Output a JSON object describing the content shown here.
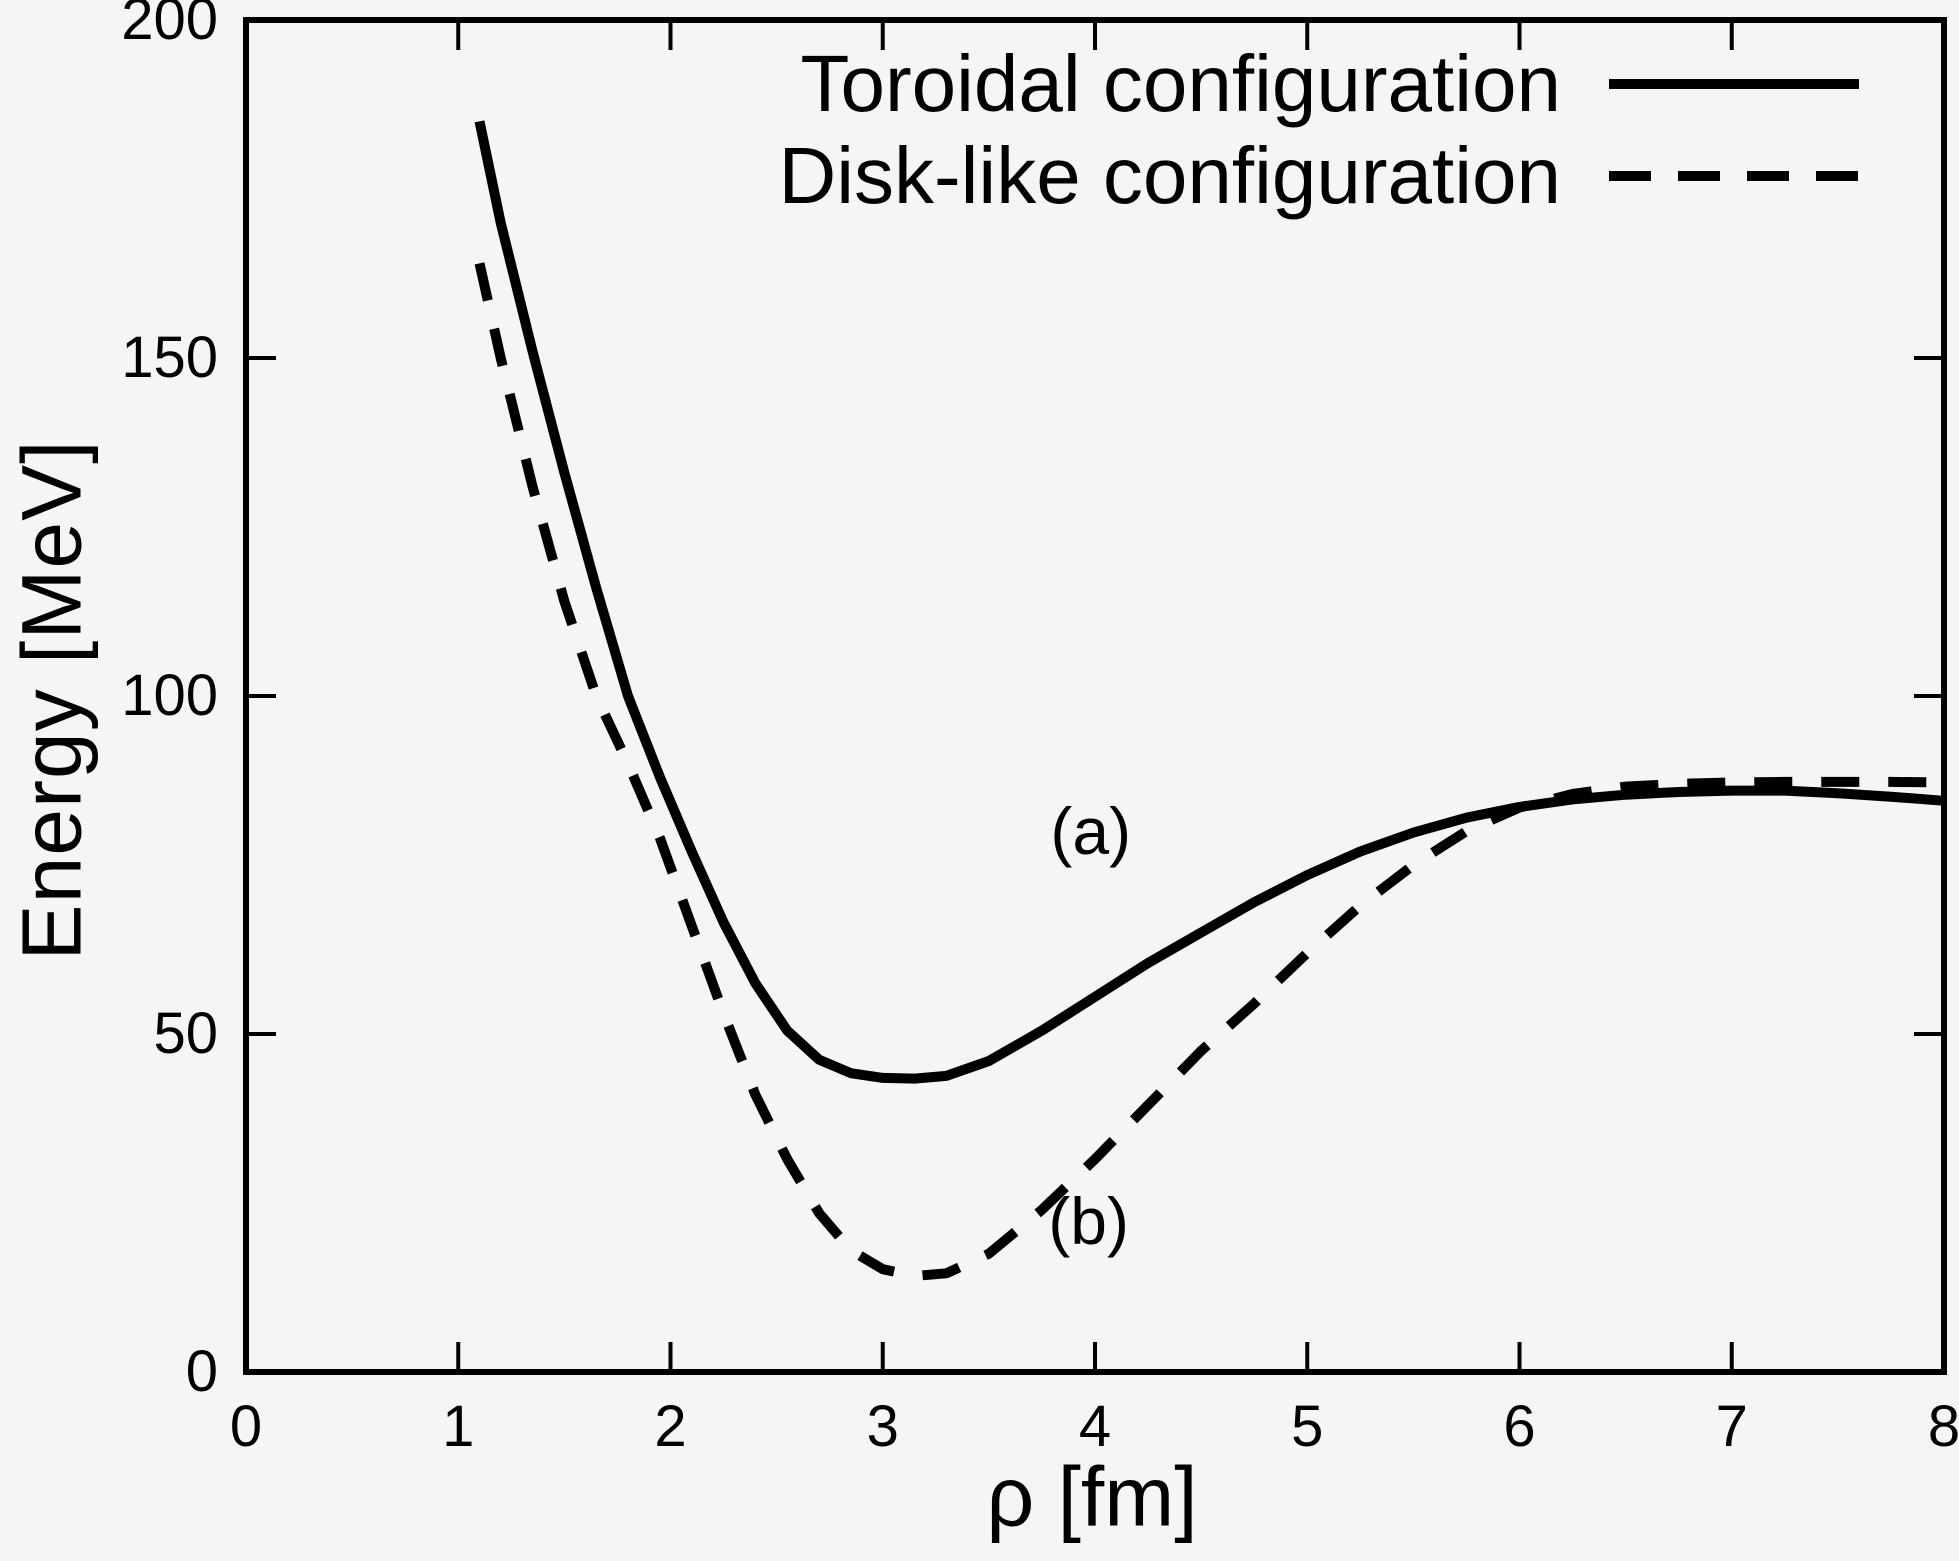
{
  "figure": {
    "background_color": "#f5f5f4",
    "line_color": "#000000"
  },
  "chart_data": {
    "type": "line",
    "title": "",
    "xlabel": "ρ [fm]",
    "ylabel": "Energy [MeV]",
    "xlim": [
      0,
      8
    ],
    "ylim": [
      0,
      200
    ],
    "x_ticks": [
      0,
      1,
      2,
      3,
      4,
      5,
      6,
      7,
      8
    ],
    "y_ticks": [
      0,
      50,
      100,
      150,
      200
    ],
    "grid": false,
    "tick_style": "inward-mirrored",
    "legend": {
      "position": "top-right",
      "entries": [
        {
          "label": "Toroidal configuration",
          "style": "solid"
        },
        {
          "label": "Disk-like configuration",
          "style": "dashed"
        }
      ]
    },
    "series": [
      {
        "name": "Toroidal configuration",
        "style": "solid",
        "color": "#000000",
        "points": [
          [
            1.1,
            185
          ],
          [
            1.2,
            170
          ],
          [
            1.35,
            151
          ],
          [
            1.5,
            133
          ],
          [
            1.65,
            116
          ],
          [
            1.8,
            100
          ],
          [
            1.95,
            88
          ],
          [
            2.1,
            77
          ],
          [
            2.25,
            66.5
          ],
          [
            2.4,
            57.5
          ],
          [
            2.55,
            50.5
          ],
          [
            2.7,
            46.2
          ],
          [
            2.85,
            44.2
          ],
          [
            3.0,
            43.5
          ],
          [
            3.15,
            43.4
          ],
          [
            3.3,
            43.8
          ],
          [
            3.5,
            46
          ],
          [
            3.75,
            50.5
          ],
          [
            4.0,
            55.5
          ],
          [
            4.25,
            60.5
          ],
          [
            4.5,
            65
          ],
          [
            4.75,
            69.5
          ],
          [
            5.0,
            73.5
          ],
          [
            5.25,
            77
          ],
          [
            5.5,
            79.8
          ],
          [
            5.75,
            82
          ],
          [
            6.0,
            83.6
          ],
          [
            6.25,
            84.7
          ],
          [
            6.5,
            85.4
          ],
          [
            6.75,
            85.8
          ],
          [
            7.0,
            86
          ],
          [
            7.25,
            86
          ],
          [
            7.5,
            85.6
          ],
          [
            7.75,
            85.1
          ],
          [
            8.0,
            84.5
          ]
        ]
      },
      {
        "name": "Disk-like configuration",
        "style": "dashed",
        "color": "#000000",
        "points": [
          [
            1.1,
            164
          ],
          [
            1.2,
            150
          ],
          [
            1.35,
            131
          ],
          [
            1.5,
            114
          ],
          [
            1.65,
            100
          ],
          [
            1.8,
            90
          ],
          [
            1.95,
            79
          ],
          [
            2.1,
            66
          ],
          [
            2.25,
            53
          ],
          [
            2.4,
            41
          ],
          [
            2.55,
            31.5
          ],
          [
            2.7,
            23.5
          ],
          [
            2.85,
            18
          ],
          [
            3.0,
            15.2
          ],
          [
            3.15,
            14.2
          ],
          [
            3.3,
            14.6
          ],
          [
            3.5,
            17.5
          ],
          [
            3.75,
            24
          ],
          [
            4.0,
            31.5
          ],
          [
            4.25,
            39.5
          ],
          [
            4.5,
            47.5
          ],
          [
            4.75,
            54.5
          ],
          [
            5.0,
            62
          ],
          [
            5.25,
            69
          ],
          [
            5.5,
            75
          ],
          [
            5.75,
            80
          ],
          [
            6.0,
            83.5
          ],
          [
            6.25,
            85.5
          ],
          [
            6.5,
            86.6
          ],
          [
            6.75,
            87
          ],
          [
            7.0,
            87.2
          ],
          [
            7.25,
            87.3
          ],
          [
            7.5,
            87.3
          ],
          [
            7.75,
            87.3
          ],
          [
            8.0,
            87.2
          ]
        ]
      }
    ],
    "annotations": [
      {
        "text": "(a)",
        "x": 3.98,
        "y": 80
      },
      {
        "text": "(b)",
        "x": 3.97,
        "y": 22.3
      }
    ]
  }
}
